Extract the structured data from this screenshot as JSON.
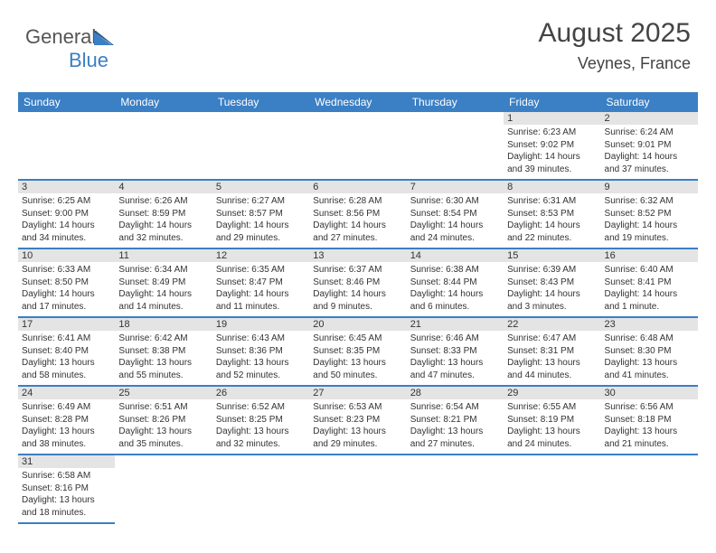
{
  "logo": {
    "text1": "General",
    "text2": "Blue"
  },
  "header": {
    "month": "August 2025",
    "location": "Veynes, France"
  },
  "colors": {
    "brand": "#3b7fc4",
    "daybar_bg": "#e4e4e4",
    "text": "#333333",
    "bg": "#ffffff"
  },
  "font": {
    "family": "Arial",
    "title_size": 30,
    "loc_size": 18,
    "header_size": 12,
    "body_size": 10
  },
  "day_names": [
    "Sunday",
    "Monday",
    "Tuesday",
    "Wednesday",
    "Thursday",
    "Friday",
    "Saturday"
  ],
  "layout": {
    "first_weekday_index": 5,
    "num_days": 31,
    "cols": 7
  },
  "days": [
    {
      "n": 1,
      "sunrise": "6:23 AM",
      "sunset": "9:02 PM",
      "dl_h": 14,
      "dl_m": 39
    },
    {
      "n": 2,
      "sunrise": "6:24 AM",
      "sunset": "9:01 PM",
      "dl_h": 14,
      "dl_m": 37
    },
    {
      "n": 3,
      "sunrise": "6:25 AM",
      "sunset": "9:00 PM",
      "dl_h": 14,
      "dl_m": 34
    },
    {
      "n": 4,
      "sunrise": "6:26 AM",
      "sunset": "8:59 PM",
      "dl_h": 14,
      "dl_m": 32
    },
    {
      "n": 5,
      "sunrise": "6:27 AM",
      "sunset": "8:57 PM",
      "dl_h": 14,
      "dl_m": 29
    },
    {
      "n": 6,
      "sunrise": "6:28 AM",
      "sunset": "8:56 PM",
      "dl_h": 14,
      "dl_m": 27
    },
    {
      "n": 7,
      "sunrise": "6:30 AM",
      "sunset": "8:54 PM",
      "dl_h": 14,
      "dl_m": 24
    },
    {
      "n": 8,
      "sunrise": "6:31 AM",
      "sunset": "8:53 PM",
      "dl_h": 14,
      "dl_m": 22
    },
    {
      "n": 9,
      "sunrise": "6:32 AM",
      "sunset": "8:52 PM",
      "dl_h": 14,
      "dl_m": 19
    },
    {
      "n": 10,
      "sunrise": "6:33 AM",
      "sunset": "8:50 PM",
      "dl_h": 14,
      "dl_m": 17
    },
    {
      "n": 11,
      "sunrise": "6:34 AM",
      "sunset": "8:49 PM",
      "dl_h": 14,
      "dl_m": 14
    },
    {
      "n": 12,
      "sunrise": "6:35 AM",
      "sunset": "8:47 PM",
      "dl_h": 14,
      "dl_m": 11
    },
    {
      "n": 13,
      "sunrise": "6:37 AM",
      "sunset": "8:46 PM",
      "dl_h": 14,
      "dl_m": 9
    },
    {
      "n": 14,
      "sunrise": "6:38 AM",
      "sunset": "8:44 PM",
      "dl_h": 14,
      "dl_m": 6
    },
    {
      "n": 15,
      "sunrise": "6:39 AM",
      "sunset": "8:43 PM",
      "dl_h": 14,
      "dl_m": 3
    },
    {
      "n": 16,
      "sunrise": "6:40 AM",
      "sunset": "8:41 PM",
      "dl_h": 14,
      "dl_m": 1
    },
    {
      "n": 17,
      "sunrise": "6:41 AM",
      "sunset": "8:40 PM",
      "dl_h": 13,
      "dl_m": 58
    },
    {
      "n": 18,
      "sunrise": "6:42 AM",
      "sunset": "8:38 PM",
      "dl_h": 13,
      "dl_m": 55
    },
    {
      "n": 19,
      "sunrise": "6:43 AM",
      "sunset": "8:36 PM",
      "dl_h": 13,
      "dl_m": 52
    },
    {
      "n": 20,
      "sunrise": "6:45 AM",
      "sunset": "8:35 PM",
      "dl_h": 13,
      "dl_m": 50
    },
    {
      "n": 21,
      "sunrise": "6:46 AM",
      "sunset": "8:33 PM",
      "dl_h": 13,
      "dl_m": 47
    },
    {
      "n": 22,
      "sunrise": "6:47 AM",
      "sunset": "8:31 PM",
      "dl_h": 13,
      "dl_m": 44
    },
    {
      "n": 23,
      "sunrise": "6:48 AM",
      "sunset": "8:30 PM",
      "dl_h": 13,
      "dl_m": 41
    },
    {
      "n": 24,
      "sunrise": "6:49 AM",
      "sunset": "8:28 PM",
      "dl_h": 13,
      "dl_m": 38
    },
    {
      "n": 25,
      "sunrise": "6:51 AM",
      "sunset": "8:26 PM",
      "dl_h": 13,
      "dl_m": 35
    },
    {
      "n": 26,
      "sunrise": "6:52 AM",
      "sunset": "8:25 PM",
      "dl_h": 13,
      "dl_m": 32
    },
    {
      "n": 27,
      "sunrise": "6:53 AM",
      "sunset": "8:23 PM",
      "dl_h": 13,
      "dl_m": 29
    },
    {
      "n": 28,
      "sunrise": "6:54 AM",
      "sunset": "8:21 PM",
      "dl_h": 13,
      "dl_m": 27
    },
    {
      "n": 29,
      "sunrise": "6:55 AM",
      "sunset": "8:19 PM",
      "dl_h": 13,
      "dl_m": 24
    },
    {
      "n": 30,
      "sunrise": "6:56 AM",
      "sunset": "8:18 PM",
      "dl_h": 13,
      "dl_m": 21
    },
    {
      "n": 31,
      "sunrise": "6:58 AM",
      "sunset": "8:16 PM",
      "dl_h": 13,
      "dl_m": 18
    }
  ],
  "labels": {
    "sunrise": "Sunrise:",
    "sunset": "Sunset:",
    "daylight_prefix": "Daylight:",
    "hours_word": "hours",
    "hour_word": "hour",
    "and_word": "and",
    "minutes_word": "minutes.",
    "minute_word": "minute."
  }
}
